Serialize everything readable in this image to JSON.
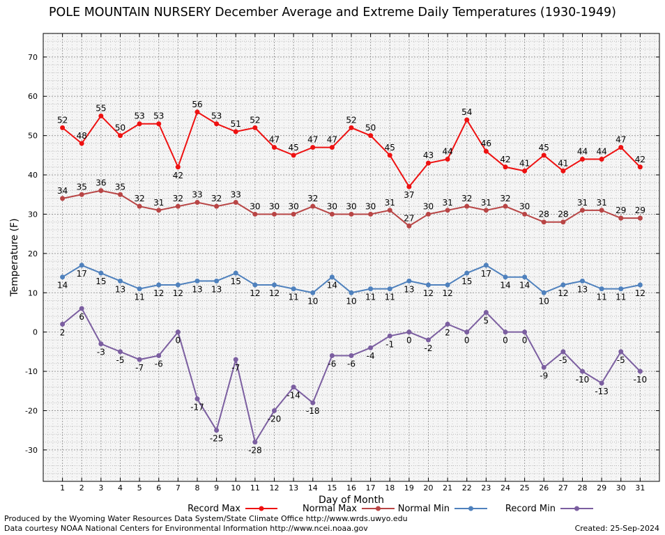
{
  "chart_data": {
    "type": "line",
    "title": "POLE MOUNTAIN NURSERY December Average and Extreme Daily Temperatures (1930-1949)",
    "xlabel": "Day of Month",
    "ylabel": "Temperature (F)",
    "ylim": [
      -38,
      76
    ],
    "yticks": [
      -30,
      -20,
      -10,
      0,
      10,
      20,
      30,
      40,
      50,
      60,
      70
    ],
    "xlim": [
      0,
      32
    ],
    "categories": [
      1,
      2,
      3,
      4,
      5,
      6,
      7,
      8,
      9,
      10,
      11,
      12,
      13,
      14,
      15,
      16,
      17,
      18,
      19,
      20,
      21,
      22,
      23,
      24,
      25,
      26,
      27,
      28,
      29,
      30,
      31
    ],
    "grid": true,
    "legend_position": "bottom",
    "series": [
      {
        "name": "Record Max",
        "color": "#ee1111",
        "values": [
          52,
          48,
          55,
          50,
          53,
          53,
          42,
          56,
          53,
          51,
          52,
          47,
          45,
          47,
          47,
          52,
          50,
          45,
          37,
          43,
          44,
          54,
          46,
          42,
          41,
          45,
          41,
          44,
          44,
          47,
          42
        ],
        "labels_below": [
          7,
          19
        ]
      },
      {
        "name": "Normal Max",
        "color": "#b84545",
        "values": [
          34,
          35,
          36,
          35,
          32,
          31,
          32,
          33,
          32,
          33,
          30,
          30,
          30,
          32,
          30,
          30,
          30,
          31,
          27,
          30,
          31,
          32,
          31,
          32,
          30,
          28,
          28,
          31,
          31,
          29,
          29
        ],
        "labels_below": []
      },
      {
        "name": "Normal Min",
        "color": "#4f81bd",
        "values": [
          14,
          17,
          15,
          13,
          11,
          12,
          12,
          13,
          13,
          15,
          12,
          12,
          11,
          10,
          14,
          10,
          11,
          11,
          13,
          12,
          12,
          15,
          17,
          14,
          14,
          10,
          12,
          13,
          11,
          11,
          12
        ],
        "labels_below": "all"
      },
      {
        "name": "Record Min",
        "color": "#7b5ea0",
        "values": [
          2,
          6,
          -3,
          -5,
          -7,
          -6,
          0,
          -17,
          -25,
          -7,
          -28,
          -20,
          -14,
          -18,
          -6,
          -6,
          -4,
          -1,
          0,
          -2,
          2,
          0,
          5,
          0,
          0,
          -9,
          -5,
          -10,
          -13,
          -5,
          -10
        ],
        "labels_below": "all"
      }
    ]
  },
  "footer": {
    "produced_by": "Produced by the Wyoming Water Resources Data System/State Climate Office http://www.wrds.uwyo.edu",
    "courtesy": "Data courtesy NOAA National Centers for Environmental Information http://www.ncei.noaa.gov",
    "created": "Created:  25-Sep-2024"
  }
}
